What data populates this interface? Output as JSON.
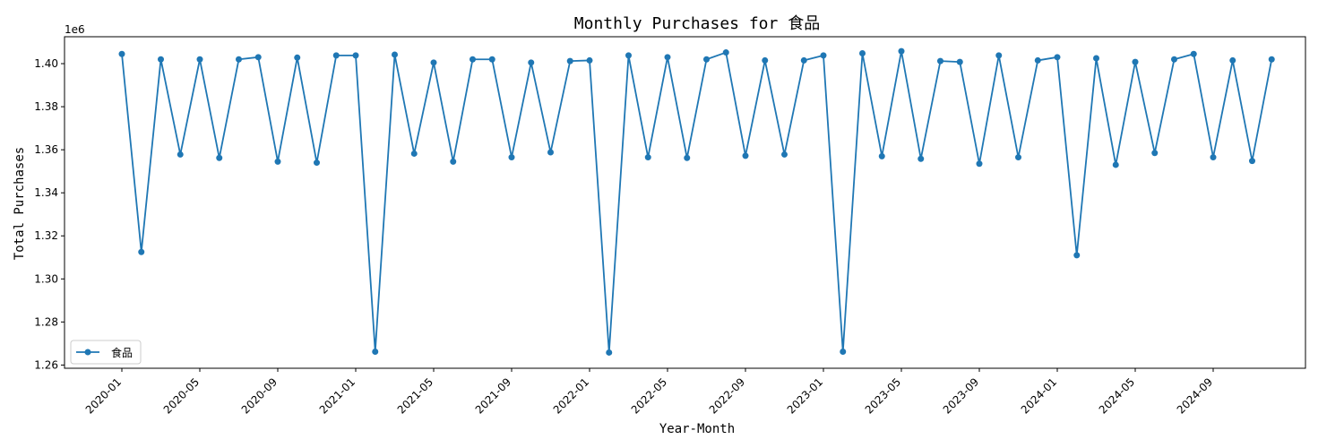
{
  "chart_data": {
    "type": "line",
    "title": "Monthly Purchases for 食品",
    "xlabel": "Year-Month",
    "ylabel": "Total Purchases",
    "y_offset_label": "1e6",
    "y_multiplier": 1000000,
    "ylim": [
      1.2585,
      1.4125
    ],
    "yticks": [
      1.26,
      1.28,
      1.3,
      1.32,
      1.34,
      1.36,
      1.38,
      1.4
    ],
    "ytick_labels": [
      "1.26",
      "1.28",
      "1.30",
      "1.32",
      "1.34",
      "1.36",
      "1.38",
      "1.40"
    ],
    "xtick_labels": [
      "2020-01",
      "2020-05",
      "2020-09",
      "2021-01",
      "2021-05",
      "2021-09",
      "2022-01",
      "2022-05",
      "2022-09",
      "2023-01",
      "2023-05",
      "2023-09",
      "2024-01",
      "2024-05",
      "2024-09"
    ],
    "grid": false,
    "legend_position": "lower-left",
    "color": "#1f77b4",
    "series": [
      {
        "name": "食品",
        "x": [
          "2020-01",
          "2020-02",
          "2020-03",
          "2020-04",
          "2020-05",
          "2020-06",
          "2020-07",
          "2020-08",
          "2020-09",
          "2020-10",
          "2020-11",
          "2020-12",
          "2021-01",
          "2021-02",
          "2021-03",
          "2021-04",
          "2021-05",
          "2021-06",
          "2021-07",
          "2021-08",
          "2021-09",
          "2021-10",
          "2021-11",
          "2021-12",
          "2022-01",
          "2022-02",
          "2022-03",
          "2022-04",
          "2022-05",
          "2022-06",
          "2022-07",
          "2022-08",
          "2022-09",
          "2022-10",
          "2022-11",
          "2022-12",
          "2023-01",
          "2023-02",
          "2023-03",
          "2023-04",
          "2023-05",
          "2023-06",
          "2023-07",
          "2023-08",
          "2023-09",
          "2023-10",
          "2023-11",
          "2023-12",
          "2024-01",
          "2024-02",
          "2024-03",
          "2024-04",
          "2024-05",
          "2024-06",
          "2024-07",
          "2024-08",
          "2024-09",
          "2024-10",
          "2024-11",
          "2024-12"
        ],
        "values": [
          1.4045,
          1.3125,
          1.402,
          1.3578,
          1.402,
          1.3562,
          1.402,
          1.403,
          1.3545,
          1.4028,
          1.354,
          1.4038,
          1.4038,
          1.2662,
          1.4042,
          1.3582,
          1.4005,
          1.3545,
          1.402,
          1.402,
          1.3565,
          1.4005,
          1.3588,
          1.4012,
          1.4015,
          1.2658,
          1.4038,
          1.3565,
          1.403,
          1.3562,
          1.402,
          1.4052,
          1.3572,
          1.4015,
          1.3578,
          1.4015,
          1.4038,
          1.2662,
          1.4048,
          1.357,
          1.4058,
          1.3558,
          1.4012,
          1.4008,
          1.3535,
          1.4038,
          1.3565,
          1.4015,
          1.403,
          1.311,
          1.4025,
          1.353,
          1.4008,
          1.3585,
          1.402,
          1.4045,
          1.3565,
          1.4015,
          1.3548,
          1.402
        ]
      }
    ]
  }
}
